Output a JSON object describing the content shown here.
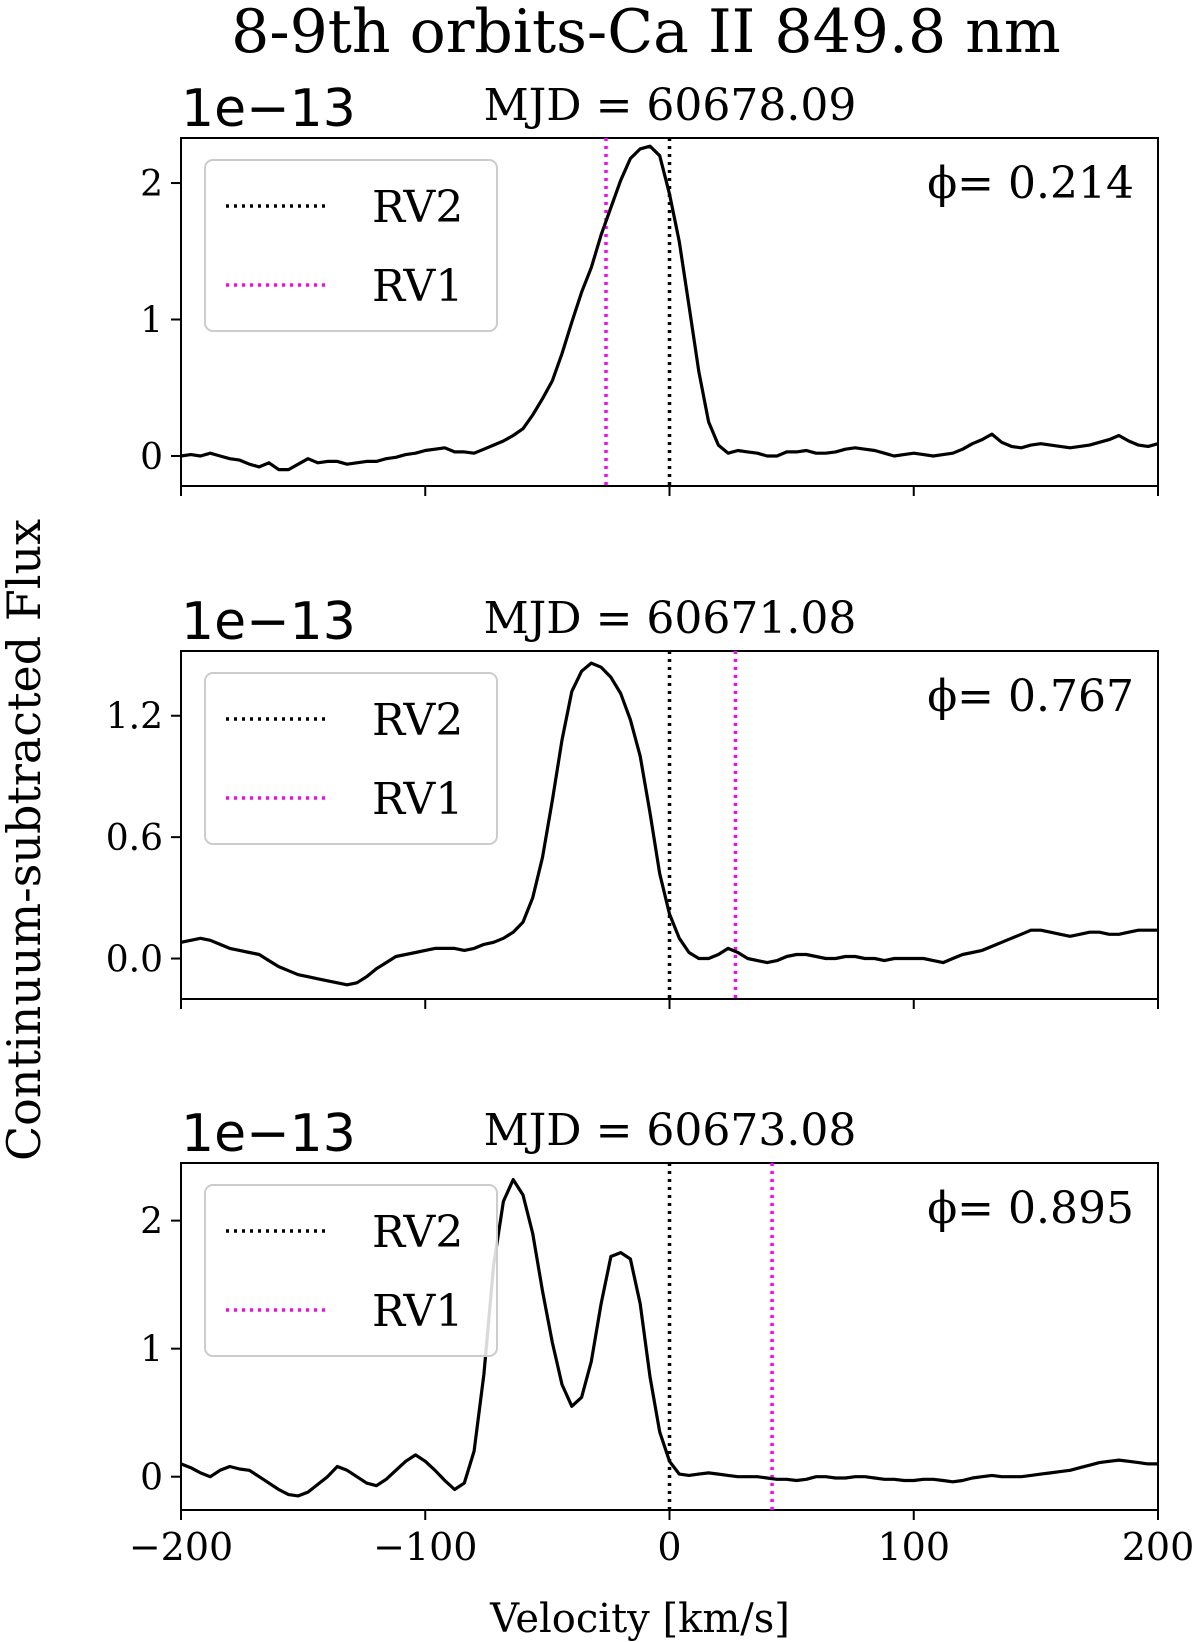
{
  "figure": {
    "title": "8-9th orbits-Ca II 849.8 nm",
    "ylabel": "Continuum-subtracted Flux",
    "xlabel": "Velocity [km/s]",
    "offset_text": "1e−13"
  },
  "colors": {
    "line": "#000000",
    "rv2": "#000000",
    "rv1": "#ff00ff"
  },
  "chart_data": [
    {
      "type": "line",
      "title": "MJD = 60678.09",
      "phase_label": "ϕ= 0.214",
      "xlim": [
        -200,
        200
      ],
      "ylim": [
        -0.22,
        2.33
      ],
      "yscale_multiplier": "1e-13",
      "yticks": [
        0,
        1,
        2
      ],
      "ytick_labels": [
        "0",
        "1",
        "2"
      ],
      "xticks": [
        -200,
        -100,
        0,
        100,
        200
      ],
      "legend": [
        {
          "label": "RV2",
          "color": "#000000",
          "style": "dotted"
        },
        {
          "label": "RV1",
          "color": "#ff00ff",
          "style": "dotted"
        }
      ],
      "rv2": 0,
      "rv1": -26,
      "x": [
        -200,
        -196,
        -192,
        -188,
        -184,
        -180,
        -176,
        -172,
        -168,
        -164,
        -160,
        -156,
        -152,
        -148,
        -144,
        -140,
        -136,
        -132,
        -128,
        -124,
        -120,
        -116,
        -112,
        -108,
        -104,
        -100,
        -96,
        -92,
        -88,
        -84,
        -80,
        -76,
        -72,
        -68,
        -64,
        -60,
        -56,
        -52,
        -48,
        -44,
        -40,
        -36,
        -32,
        -28,
        -24,
        -20,
        -16,
        -12,
        -8,
        -4,
        0,
        4,
        8,
        12,
        16,
        20,
        24,
        28,
        32,
        36,
        40,
        44,
        48,
        52,
        56,
        60,
        64,
        68,
        72,
        76,
        80,
        84,
        88,
        92,
        96,
        100,
        104,
        108,
        112,
        116,
        120,
        124,
        128,
        132,
        136,
        140,
        144,
        148,
        152,
        156,
        160,
        164,
        168,
        172,
        176,
        180,
        184,
        188,
        192,
        196,
        200
      ],
      "y": [
        0.0,
        0.01,
        0.0,
        0.02,
        0.0,
        -0.02,
        -0.03,
        -0.06,
        -0.08,
        -0.05,
        -0.1,
        -0.1,
        -0.06,
        -0.02,
        -0.05,
        -0.04,
        -0.04,
        -0.06,
        -0.05,
        -0.04,
        -0.04,
        -0.02,
        -0.01,
        0.01,
        0.02,
        0.04,
        0.05,
        0.06,
        0.03,
        0.03,
        0.02,
        0.05,
        0.08,
        0.11,
        0.15,
        0.2,
        0.3,
        0.42,
        0.55,
        0.75,
        0.98,
        1.2,
        1.38,
        1.62,
        1.82,
        2.02,
        2.18,
        2.25,
        2.27,
        2.2,
        1.92,
        1.57,
        1.1,
        0.62,
        0.25,
        0.08,
        0.02,
        0.04,
        0.03,
        0.02,
        0.0,
        0.0,
        0.03,
        0.03,
        0.04,
        0.02,
        0.02,
        0.03,
        0.05,
        0.06,
        0.05,
        0.04,
        0.02,
        0.0,
        0.01,
        0.02,
        0.01,
        0.0,
        0.01,
        0.02,
        0.05,
        0.09,
        0.12,
        0.16,
        0.1,
        0.07,
        0.06,
        0.08,
        0.09,
        0.08,
        0.07,
        0.06,
        0.07,
        0.08,
        0.1,
        0.12,
        0.15,
        0.11,
        0.08,
        0.07,
        0.09
      ]
    },
    {
      "type": "line",
      "title": "MJD = 60671.08",
      "phase_label": "ϕ= 0.767",
      "xlim": [
        -200,
        200
      ],
      "ylim": [
        -0.2,
        1.52
      ],
      "yscale_multiplier": "1e-13",
      "yticks": [
        0.0,
        0.6,
        1.2
      ],
      "ytick_labels": [
        "0.0",
        "0.6",
        "1.2"
      ],
      "xticks": [
        -200,
        -100,
        0,
        100,
        200
      ],
      "legend": [
        {
          "label": "RV2",
          "color": "#000000",
          "style": "dotted"
        },
        {
          "label": "RV1",
          "color": "#ff00ff",
          "style": "dotted"
        }
      ],
      "rv2": 0,
      "rv1": 27,
      "x": [
        -200,
        -196,
        -192,
        -188,
        -184,
        -180,
        -176,
        -172,
        -168,
        -164,
        -160,
        -156,
        -152,
        -148,
        -144,
        -140,
        -136,
        -132,
        -128,
        -124,
        -120,
        -116,
        -112,
        -108,
        -104,
        -100,
        -96,
        -92,
        -88,
        -84,
        -80,
        -76,
        -72,
        -68,
        -64,
        -60,
        -56,
        -52,
        -48,
        -44,
        -40,
        -36,
        -32,
        -28,
        -24,
        -20,
        -16,
        -12,
        -8,
        -4,
        0,
        4,
        8,
        12,
        16,
        20,
        24,
        28,
        32,
        36,
        40,
        44,
        48,
        52,
        56,
        60,
        64,
        68,
        72,
        76,
        80,
        84,
        88,
        92,
        96,
        100,
        104,
        108,
        112,
        116,
        120,
        124,
        128,
        132,
        136,
        140,
        144,
        148,
        152,
        156,
        160,
        164,
        168,
        172,
        176,
        180,
        184,
        188,
        192,
        196,
        200
      ],
      "y": [
        0.08,
        0.09,
        0.1,
        0.09,
        0.07,
        0.05,
        0.04,
        0.03,
        0.02,
        -0.01,
        -0.04,
        -0.06,
        -0.08,
        -0.09,
        -0.1,
        -0.11,
        -0.12,
        -0.13,
        -0.12,
        -0.09,
        -0.05,
        -0.02,
        0.01,
        0.02,
        0.03,
        0.04,
        0.05,
        0.05,
        0.05,
        0.04,
        0.05,
        0.07,
        0.08,
        0.1,
        0.13,
        0.18,
        0.3,
        0.5,
        0.78,
        1.08,
        1.32,
        1.42,
        1.46,
        1.44,
        1.39,
        1.31,
        1.18,
        1.0,
        0.72,
        0.42,
        0.22,
        0.1,
        0.03,
        0.0,
        0.0,
        0.02,
        0.05,
        0.03,
        0.0,
        -0.01,
        -0.02,
        -0.01,
        0.01,
        0.02,
        0.02,
        0.01,
        0.0,
        0.0,
        0.01,
        0.01,
        0.0,
        0.0,
        -0.01,
        0.0,
        0.0,
        0.0,
        0.0,
        -0.01,
        -0.02,
        0.0,
        0.02,
        0.03,
        0.04,
        0.06,
        0.08,
        0.1,
        0.12,
        0.14,
        0.14,
        0.13,
        0.12,
        0.11,
        0.12,
        0.13,
        0.13,
        0.12,
        0.12,
        0.13,
        0.14,
        0.14,
        0.14
      ]
    },
    {
      "type": "line",
      "title": "MJD = 60673.08",
      "phase_label": "ϕ= 0.895",
      "xlim": [
        -200,
        200
      ],
      "ylim": [
        -0.26,
        2.45
      ],
      "yscale_multiplier": "1e-13",
      "yticks": [
        0,
        1,
        2
      ],
      "ytick_labels": [
        "0",
        "1",
        "2"
      ],
      "xticks": [
        -200,
        -100,
        0,
        100,
        200
      ],
      "xtick_labels": [
        "−200",
        "−100",
        "0",
        "100",
        "200"
      ],
      "legend": [
        {
          "label": "RV2",
          "color": "#000000",
          "style": "dotted"
        },
        {
          "label": "RV1",
          "color": "#ff00ff",
          "style": "dotted"
        }
      ],
      "rv2": 0,
      "rv1": 42,
      "x": [
        -200,
        -196,
        -192,
        -188,
        -184,
        -180,
        -176,
        -172,
        -168,
        -164,
        -160,
        -156,
        -152,
        -148,
        -144,
        -140,
        -136,
        -132,
        -128,
        -124,
        -120,
        -116,
        -112,
        -108,
        -104,
        -100,
        -96,
        -92,
        -88,
        -84,
        -80,
        -76,
        -72,
        -68,
        -64,
        -60,
        -56,
        -52,
        -48,
        -44,
        -40,
        -36,
        -32,
        -28,
        -24,
        -20,
        -16,
        -12,
        -8,
        -4,
        0,
        4,
        8,
        12,
        16,
        20,
        24,
        28,
        32,
        36,
        40,
        44,
        48,
        52,
        56,
        60,
        64,
        68,
        72,
        76,
        80,
        84,
        88,
        92,
        96,
        100,
        104,
        108,
        112,
        116,
        120,
        124,
        128,
        132,
        136,
        140,
        144,
        148,
        152,
        156,
        160,
        164,
        168,
        172,
        176,
        180,
        184,
        188,
        192,
        196,
        200
      ],
      "y": [
        0.1,
        0.07,
        0.03,
        0.0,
        0.05,
        0.08,
        0.06,
        0.05,
        0.0,
        -0.05,
        -0.1,
        -0.14,
        -0.15,
        -0.12,
        -0.06,
        0.0,
        0.08,
        0.05,
        0.0,
        -0.05,
        -0.07,
        -0.02,
        0.05,
        0.12,
        0.17,
        0.12,
        0.05,
        -0.03,
        -0.1,
        -0.05,
        0.2,
        0.8,
        1.65,
        2.15,
        2.32,
        2.2,
        1.9,
        1.45,
        1.05,
        0.72,
        0.55,
        0.62,
        0.9,
        1.35,
        1.72,
        1.75,
        1.7,
        1.35,
        0.78,
        0.35,
        0.12,
        0.02,
        0.01,
        0.02,
        0.03,
        0.02,
        0.01,
        0.0,
        0.0,
        0.0,
        -0.01,
        -0.02,
        -0.02,
        -0.03,
        -0.02,
        0.0,
        0.0,
        -0.01,
        -0.01,
        0.0,
        0.0,
        -0.01,
        -0.02,
        -0.02,
        -0.03,
        -0.03,
        -0.02,
        -0.02,
        -0.03,
        -0.04,
        -0.03,
        -0.01,
        0.0,
        0.01,
        0.0,
        0.0,
        0.0,
        0.01,
        0.02,
        0.03,
        0.04,
        0.05,
        0.07,
        0.09,
        0.11,
        0.12,
        0.13,
        0.12,
        0.11,
        0.1,
        0.1
      ]
    }
  ]
}
